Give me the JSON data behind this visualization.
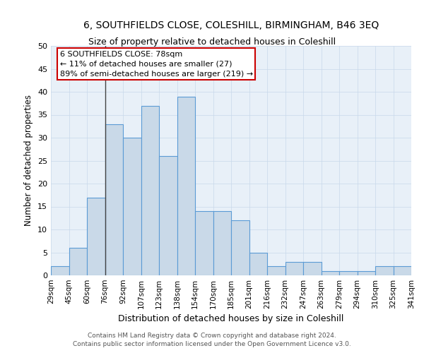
{
  "title": "6, SOUTHFIELDS CLOSE, COLESHILL, BIRMINGHAM, B46 3EQ",
  "subtitle": "Size of property relative to detached houses in Coleshill",
  "xlabel": "Distribution of detached houses by size in Coleshill",
  "ylabel": "Number of detached properties",
  "bar_values": [
    2,
    6,
    17,
    33,
    30,
    37,
    26,
    39,
    14,
    14,
    12,
    5,
    2,
    3,
    3,
    1,
    1,
    1,
    2,
    2
  ],
  "categories": [
    "29sqm",
    "45sqm",
    "60sqm",
    "76sqm",
    "92sqm",
    "107sqm",
    "123sqm",
    "138sqm",
    "154sqm",
    "170sqm",
    "185sqm",
    "201sqm",
    "216sqm",
    "232sqm",
    "247sqm",
    "263sqm",
    "279sqm",
    "294sqm",
    "310sqm",
    "325sqm",
    "341sqm"
  ],
  "bar_color": "#c9d9e8",
  "bar_edge_color": "#5b9bd5",
  "annotation_text": "6 SOUTHFIELDS CLOSE: 78sqm\n← 11% of detached houses are smaller (27)\n89% of semi-detached houses are larger (219) →",
  "annotation_box_color": "#ffffff",
  "annotation_box_edge": "#cc0000",
  "vline_color": "#444444",
  "grid_color": "#c8d8ea",
  "background_color": "#e8f0f8",
  "ylim": [
    0,
    50
  ],
  "yticks": [
    0,
    5,
    10,
    15,
    20,
    25,
    30,
    35,
    40,
    45,
    50
  ],
  "footer_line1": "Contains HM Land Registry data © Crown copyright and database right 2024.",
  "footer_line2": "Contains public sector information licensed under the Open Government Licence v3.0."
}
